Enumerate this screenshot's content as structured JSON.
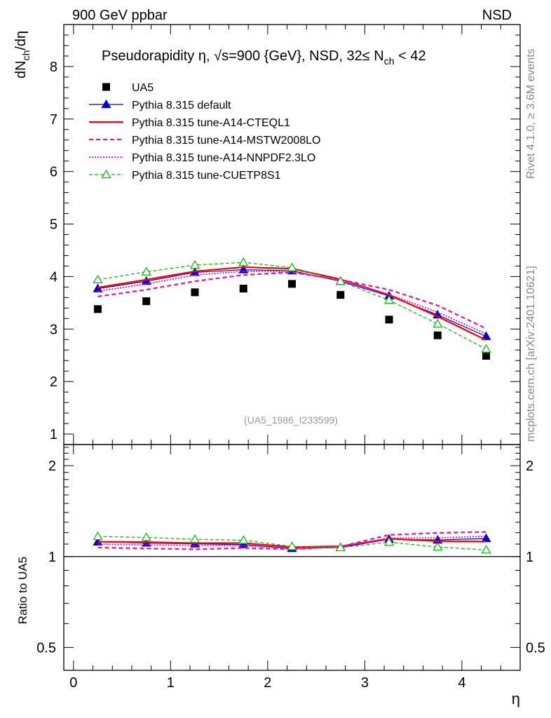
{
  "header": {
    "left": "900 GeV ppbar",
    "right": "NSD"
  },
  "side_labels": {
    "rivet": "Rivet 4.1.0, ≥ 3.6M events",
    "mcplots": "mcplots.cern.ch [arXiv:2401.10621]"
  },
  "colors": {
    "data": "#000000",
    "default": "#0000cc",
    "cteql1": "#ff0000",
    "mstw": "#e8178a",
    "nnpdf": "#e600e6",
    "cuetp8s1": "#00bb00"
  },
  "chart_data": [
    {
      "type": "scatter+line",
      "title_parts": {
        "main": "Pseudorapidity η, √s=900 {GeV}, NSD, 32≤ N",
        "sub": "ch",
        "tail": " < 42"
      },
      "ylabel": "dN_ch/dη",
      "ylabel_parts": {
        "a": "dN",
        "b": "ch",
        "c": "/dη"
      },
      "xlabel": "η",
      "xlim": [
        -0.1,
        4.6
      ],
      "ylim": [
        0.8,
        8.8
      ],
      "yticks": [
        "1",
        "2",
        "3",
        "4",
        "5",
        "6",
        "7",
        "8"
      ],
      "xticks": [
        "0",
        "1",
        "2",
        "3",
        "4"
      ],
      "x": [
        0.25,
        0.75,
        1.25,
        1.75,
        2.25,
        2.75,
        3.25,
        3.75,
        4.25
      ],
      "watermark": "(UA5_1986_I233599)",
      "series": [
        {
          "key": "data",
          "name": "UA5",
          "values": [
            3.38,
            3.53,
            3.7,
            3.77,
            3.86,
            3.65,
            3.18,
            2.88,
            2.49
          ]
        },
        {
          "key": "default",
          "name": "Pythia 8.315 default",
          "values": [
            3.77,
            3.91,
            4.08,
            4.13,
            4.11,
            3.91,
            3.63,
            3.27,
            2.86
          ]
        },
        {
          "key": "cteql1",
          "name": "Pythia 8.315 tune-A14-CTEQL1",
          "values": [
            3.79,
            3.94,
            4.1,
            4.18,
            4.15,
            3.95,
            3.65,
            3.24,
            2.79
          ]
        },
        {
          "key": "mstw",
          "name": "Pythia 8.315 tune-A14-MSTW2008LO",
          "values": [
            3.62,
            3.75,
            3.91,
            4.03,
            4.08,
            3.94,
            3.75,
            3.45,
            3.01
          ]
        },
        {
          "key": "nnpdf",
          "name": "Pythia 8.315 tune-A14-NNPDF2.3LO",
          "values": [
            3.72,
            3.86,
            4.03,
            4.1,
            4.09,
            3.93,
            3.66,
            3.32,
            2.91
          ]
        },
        {
          "key": "cuetp8s1",
          "name": "Pythia 8.315 tune-CUETP8S1",
          "values": [
            3.94,
            4.09,
            4.22,
            4.27,
            4.17,
            3.91,
            3.55,
            3.1,
            2.62
          ]
        }
      ]
    },
    {
      "type": "ratio",
      "ylabel": "Ratio to UA5",
      "ylim": [
        0.42,
        2.35
      ],
      "yticks": [
        "0.5",
        "1",
        "2"
      ],
      "ratios": {
        "default": [
          1.118,
          1.109,
          1.102,
          1.096,
          1.064,
          1.071,
          1.142,
          1.135,
          1.148
        ],
        "cteql1": [
          1.12,
          1.116,
          1.108,
          1.109,
          1.075,
          1.082,
          1.146,
          1.125,
          1.122
        ],
        "mstw": [
          1.071,
          1.064,
          1.057,
          1.068,
          1.057,
          1.079,
          1.18,
          1.198,
          1.207
        ],
        "nnpdf": [
          1.101,
          1.093,
          1.089,
          1.088,
          1.059,
          1.077,
          1.151,
          1.153,
          1.168
        ],
        "cuetp8s1": [
          1.166,
          1.157,
          1.141,
          1.133,
          1.08,
          1.071,
          1.116,
          1.076,
          1.052
        ]
      }
    }
  ]
}
